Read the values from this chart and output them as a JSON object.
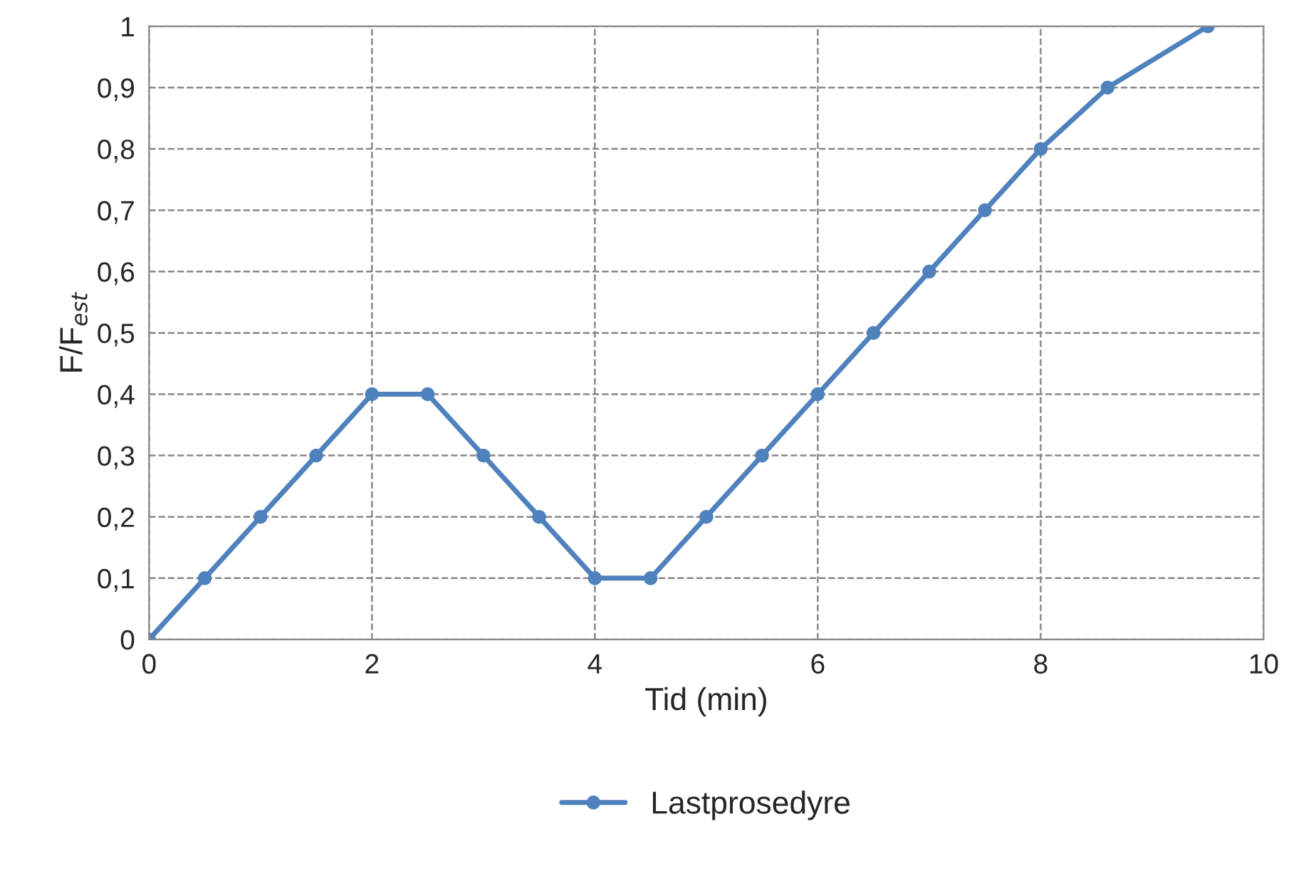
{
  "chart_data": {
    "type": "line",
    "xlabel": "Tid (min)",
    "ylabel": "F/F$_{est}$",
    "x": [
      0,
      0.5,
      1,
      1.5,
      2,
      2.5,
      3,
      3.5,
      4,
      4.5,
      5,
      5.5,
      6,
      6.5,
      7,
      7.5,
      8,
      8.6,
      9.5
    ],
    "series": [
      {
        "name": "Lastprosedyre",
        "color": "#4f81bd",
        "values": [
          0,
          0.1,
          0.2,
          0.3,
          0.4,
          0.4,
          0.3,
          0.2,
          0.1,
          0.1,
          0.2,
          0.3,
          0.4,
          0.5,
          0.6,
          0.7,
          0.8,
          0.9,
          1.0
        ]
      }
    ],
    "xlim": [
      0,
      10
    ],
    "xticks": [
      0,
      2,
      4,
      6,
      8,
      10
    ],
    "ylim": [
      0,
      1
    ],
    "yticks": [
      0,
      {
        "value": 0.1,
        "label": "0,1"
      },
      {
        "value": 0.2,
        "label": "0,2"
      },
      {
        "value": 0.3,
        "label": "0,3"
      },
      {
        "value": 0.4,
        "label": "0,4"
      },
      {
        "value": 0.5,
        "label": "0,5"
      },
      {
        "value": 0.6,
        "label": "0,6"
      },
      {
        "value": 0.7,
        "label": "0,7"
      },
      {
        "value": 0.8,
        "label": "0,8"
      },
      {
        "value": 0.9,
        "label": "0,9"
      },
      1
    ],
    "grid": true,
    "legend": "bottom",
    "marker": "circle",
    "line_style": "solid"
  }
}
